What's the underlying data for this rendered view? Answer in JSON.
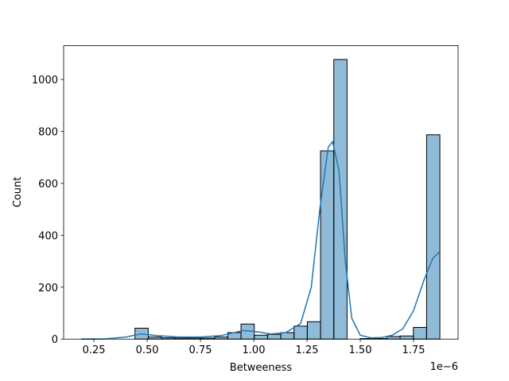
{
  "chart_data": {
    "type": "histogram",
    "xlabel": "Betweeness",
    "ylabel": "Count",
    "x_offset_label": "1e−6",
    "bins": [
      0.194,
      0.2562,
      0.3184,
      0.3806,
      0.4428,
      0.505,
      0.5672,
      0.6294,
      0.6916,
      0.7538,
      0.816,
      0.8782,
      0.9404,
      1.0026,
      1.0648,
      1.127,
      1.1892,
      1.2514,
      1.3136,
      1.3758,
      1.438,
      1.5002,
      1.5624,
      1.6246,
      1.6868,
      1.749,
      1.8112,
      1.8734
    ],
    "counts": [
      1,
      0,
      0,
      0,
      42,
      8,
      5,
      4,
      4,
      4,
      8,
      25,
      58,
      15,
      18,
      25,
      50,
      67,
      725,
      1077,
      0,
      2,
      2,
      10,
      12,
      45,
      787
    ],
    "color": "#1f77b4",
    "kde": {
      "x": [
        0.19,
        0.3,
        0.4,
        0.47,
        0.55,
        0.65,
        0.75,
        0.85,
        0.95,
        1.0,
        1.08,
        1.15,
        1.22,
        1.27,
        1.31,
        1.35,
        1.37,
        1.4,
        1.43,
        1.46,
        1.5,
        1.55,
        1.6,
        1.65,
        1.7,
        1.75,
        1.8,
        1.84,
        1.87
      ],
      "values": [
        0,
        0.5,
        8,
        20,
        13,
        8,
        8,
        14,
        33,
        30,
        20,
        25,
        60,
        200,
        500,
        740,
        760,
        650,
        300,
        80,
        15,
        5,
        6,
        15,
        40,
        110,
        230,
        310,
        335
      ]
    },
    "xlim": [
      0.108,
      1.959
    ],
    "ylim": [
      0,
      1130
    ],
    "xticks": [
      0.25,
      {
        "value": 0.5,
        "label": "0.50"
      },
      0.75,
      {
        "value": 1.0,
        "label": "1.00"
      },
      1.25,
      {
        "value": 1.5,
        "label": "1.50"
      },
      1.75
    ],
    "yticks": [
      0,
      200,
      400,
      600,
      800,
      1000
    ]
  }
}
